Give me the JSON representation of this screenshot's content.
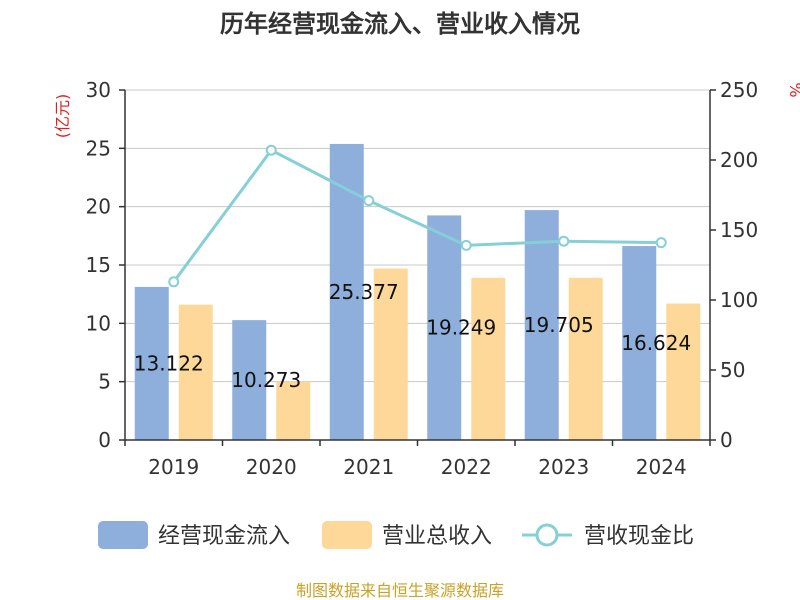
{
  "chart_data": {
    "type": "bar",
    "title": "历年经营现金流入、营业收入情况",
    "categories": [
      "2019",
      "2020",
      "2021",
      "2022",
      "2023",
      "2024"
    ],
    "left_axis": {
      "unit": "(亿元)",
      "ylim": [
        0,
        30
      ],
      "ticks": [
        0,
        5,
        10,
        15,
        20,
        25,
        30
      ]
    },
    "right_axis": {
      "unit": "%",
      "ylim": [
        0,
        250
      ],
      "ticks": [
        0,
        50,
        100,
        150,
        200,
        250
      ]
    },
    "series": [
      {
        "name": "经营现金流入",
        "type": "bar",
        "axis": "left",
        "color": "#8eaedb",
        "values": [
          13.122,
          10.273,
          25.377,
          19.249,
          19.705,
          16.624
        ],
        "labels": [
          "13.122",
          "10.273",
          "25.377",
          "19.249",
          "19.705",
          "16.624"
        ]
      },
      {
        "name": "营业总收入",
        "type": "bar",
        "axis": "left",
        "color": "#fed898",
        "values": [
          11.6,
          5.0,
          14.7,
          13.9,
          13.9,
          11.7
        ]
      },
      {
        "name": "营收现金比",
        "type": "line",
        "axis": "right",
        "color": "#84d0d6",
        "values": [
          113,
          207,
          171,
          139,
          142,
          141
        ]
      }
    ],
    "grid": true,
    "legend_position": "bottom"
  },
  "footer": {
    "source": "制图数据来自恒生聚源数据库"
  }
}
